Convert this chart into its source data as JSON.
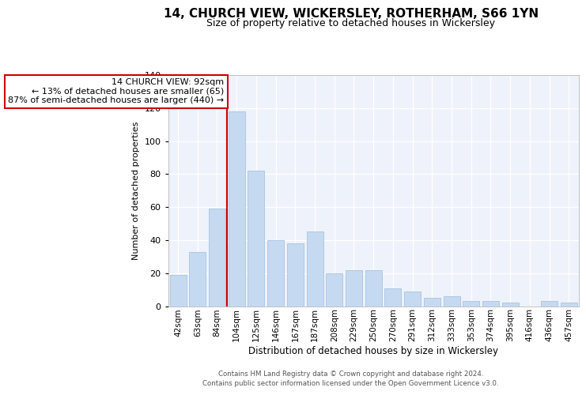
{
  "title": "14, CHURCH VIEW, WICKERSLEY, ROTHERHAM, S66 1YN",
  "subtitle": "Size of property relative to detached houses in Wickersley",
  "xlabel": "Distribution of detached houses by size in Wickersley",
  "ylabel": "Number of detached properties",
  "annotation_line1": "14 CHURCH VIEW: 92sqm",
  "annotation_line2": "← 13% of detached houses are smaller (65)",
  "annotation_line3": "87% of semi-detached houses are larger (440) →",
  "categories": [
    "42sqm",
    "63sqm",
    "84sqm",
    "104sqm",
    "125sqm",
    "146sqm",
    "167sqm",
    "187sqm",
    "208sqm",
    "229sqm",
    "250sqm",
    "270sqm",
    "291sqm",
    "312sqm",
    "333sqm",
    "353sqm",
    "374sqm",
    "395sqm",
    "416sqm",
    "436sqm",
    "457sqm"
  ],
  "values": [
    19,
    33,
    59,
    118,
    82,
    40,
    38,
    45,
    20,
    22,
    22,
    11,
    9,
    5,
    6,
    3,
    3,
    2,
    0,
    3,
    2
  ],
  "red_line_index": 3,
  "bar_color": "#c5d9f0",
  "bar_edge_color": "#a8c4e0",
  "annotation_box_color": "#cc0000",
  "ylim": [
    0,
    140
  ],
  "yticks": [
    0,
    20,
    40,
    60,
    80,
    100,
    120,
    140
  ],
  "bg_color": "#eef2fa",
  "grid_color": "#ffffff",
  "footer_line1": "Contains HM Land Registry data © Crown copyright and database right 2024.",
  "footer_line2": "Contains public sector information licensed under the Open Government Licence v3.0."
}
